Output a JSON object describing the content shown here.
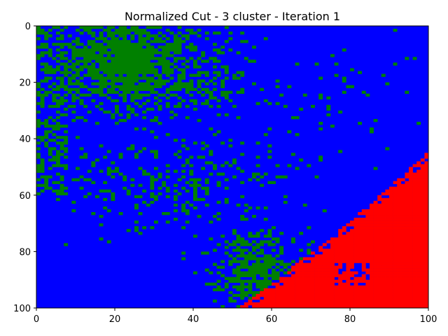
{
  "chart_data": {
    "type": "heatmap",
    "title": "Normalized Cut - 3 cluster - Iteration 1",
    "xlabel": "",
    "ylabel": "",
    "xlim": [
      0,
      100
    ],
    "ylim": [
      100,
      0
    ],
    "grid": false,
    "grid_size": [
      100,
      100
    ],
    "x_ticks": [
      "0",
      "20",
      "40",
      "60",
      "80",
      "100"
    ],
    "y_ticks": [
      "0",
      "20",
      "40",
      "60",
      "80",
      "100"
    ],
    "clusters": [
      {
        "name": "cluster-green",
        "color": "#008000"
      },
      {
        "name": "cluster-blue",
        "color": "#0000ff"
      },
      {
        "name": "cluster-red",
        "color": "#ff0000"
      }
    ],
    "regions": [
      {
        "cluster": "cluster-green",
        "description": "dense top-left",
        "x": [
          0,
          40
        ],
        "y": [
          0,
          35
        ]
      },
      {
        "cluster": "cluster-green",
        "description": "scattered middle band",
        "x": [
          10,
          60
        ],
        "y": [
          35,
          80
        ]
      },
      {
        "cluster": "cluster-green",
        "description": "bottom-center wedge",
        "x": [
          45,
          70
        ],
        "y": [
          70,
          100
        ]
      },
      {
        "cluster": "cluster-red",
        "description": "bottom-right region",
        "x": [
          55,
          100
        ],
        "y": [
          56,
          100
        ]
      },
      {
        "cluster": "cluster-blue",
        "description": "background elsewhere",
        "x": [
          0,
          100
        ],
        "y": [
          0,
          100
        ]
      }
    ]
  }
}
